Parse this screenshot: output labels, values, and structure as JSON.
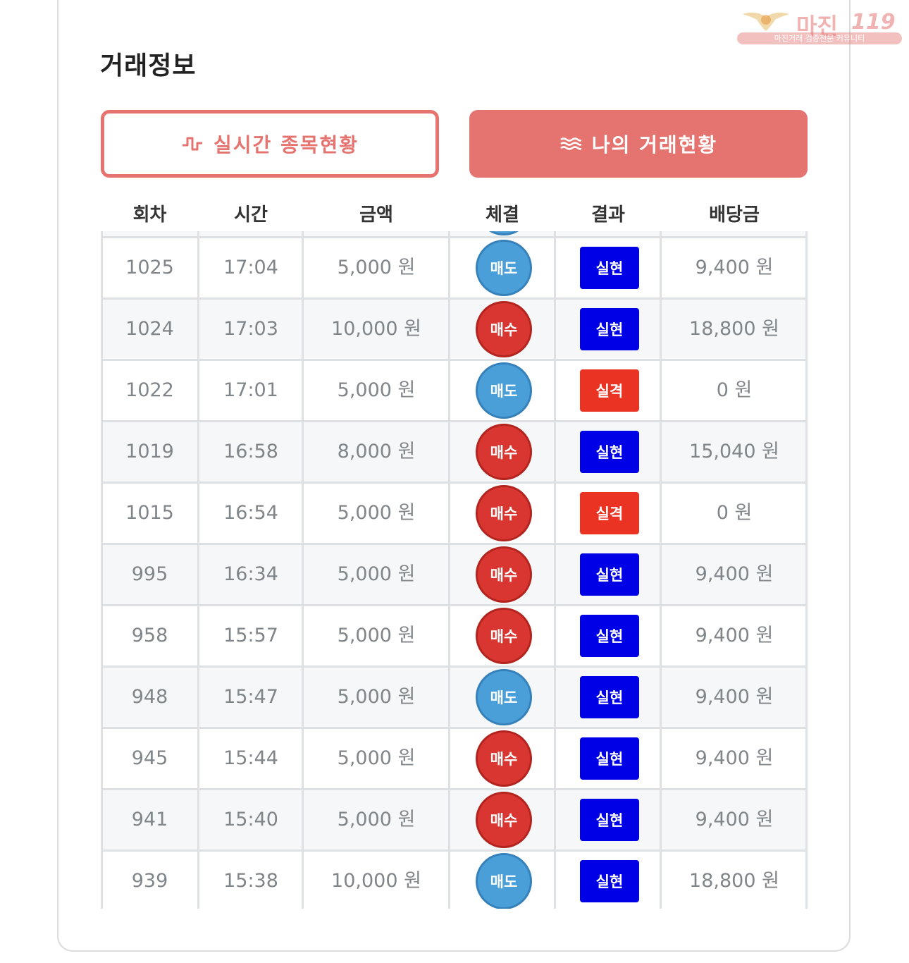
{
  "title": "거래정보",
  "watermark": {
    "brand": "마진",
    "number": "119",
    "tagline": "마진거래 검증전문 커뮤니티"
  },
  "tabs": {
    "live": "실시간 종목현황",
    "mine": "나의 거래현황"
  },
  "columns": [
    "회차",
    "시간",
    "금액",
    "체결",
    "결과",
    "배당금"
  ],
  "rows": [
    {
      "round": "1025",
      "time": "17:04",
      "amount": "5,000 원",
      "side": "매도",
      "side_type": "sell",
      "result": "실현",
      "result_type": "win",
      "payout": "9,400 원"
    },
    {
      "round": "1024",
      "time": "17:03",
      "amount": "10,000 원",
      "side": "매수",
      "side_type": "buy",
      "result": "실현",
      "result_type": "win",
      "payout": "18,800 원"
    },
    {
      "round": "1022",
      "time": "17:01",
      "amount": "5,000 원",
      "side": "매도",
      "side_type": "sell",
      "result": "실격",
      "result_type": "lose",
      "payout": "0 원"
    },
    {
      "round": "1019",
      "time": "16:58",
      "amount": "8,000 원",
      "side": "매수",
      "side_type": "buy",
      "result": "실현",
      "result_type": "win",
      "payout": "15,040 원"
    },
    {
      "round": "1015",
      "time": "16:54",
      "amount": "5,000 원",
      "side": "매수",
      "side_type": "buy",
      "result": "실격",
      "result_type": "lose",
      "payout": "0 원"
    },
    {
      "round": "995",
      "time": "16:34",
      "amount": "5,000 원",
      "side": "매수",
      "side_type": "buy",
      "result": "실현",
      "result_type": "win",
      "payout": "9,400 원"
    },
    {
      "round": "958",
      "time": "15:57",
      "amount": "5,000 원",
      "side": "매수",
      "side_type": "buy",
      "result": "실현",
      "result_type": "win",
      "payout": "9,400 원"
    },
    {
      "round": "948",
      "time": "15:47",
      "amount": "5,000 원",
      "side": "매도",
      "side_type": "sell",
      "result": "실현",
      "result_type": "win",
      "payout": "9,400 원"
    },
    {
      "round": "945",
      "time": "15:44",
      "amount": "5,000 원",
      "side": "매수",
      "side_type": "buy",
      "result": "실현",
      "result_type": "win",
      "payout": "9,400 원"
    },
    {
      "round": "941",
      "time": "15:40",
      "amount": "5,000 원",
      "side": "매수",
      "side_type": "buy",
      "result": "실현",
      "result_type": "win",
      "payout": "9,400 원"
    },
    {
      "round": "939",
      "time": "15:38",
      "amount": "10,000 원",
      "side": "매도",
      "side_type": "sell",
      "result": "실현",
      "result_type": "win",
      "payout": "18,800 원"
    }
  ]
}
